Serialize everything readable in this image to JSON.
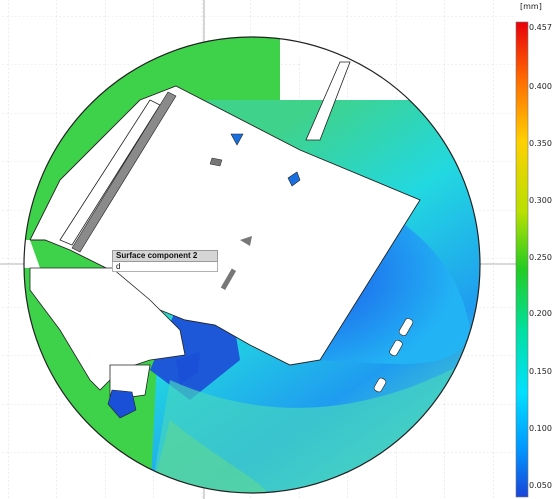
{
  "legend": {
    "unit": "[mm]",
    "ticks": [
      "0.457",
      "0.400",
      "0.350",
      "0.300",
      "0.250",
      "0.200",
      "0.150",
      "0.100",
      "0.050"
    ],
    "colors": [
      "#e8000b",
      "#ff6a00",
      "#ffd000",
      "#b8e000",
      "#22cc22",
      "#00e0a0",
      "#00e0ff",
      "#0096ff",
      "#1a44d8"
    ]
  },
  "callout": {
    "title": "Surface component 2",
    "subtitle": "d"
  }
}
